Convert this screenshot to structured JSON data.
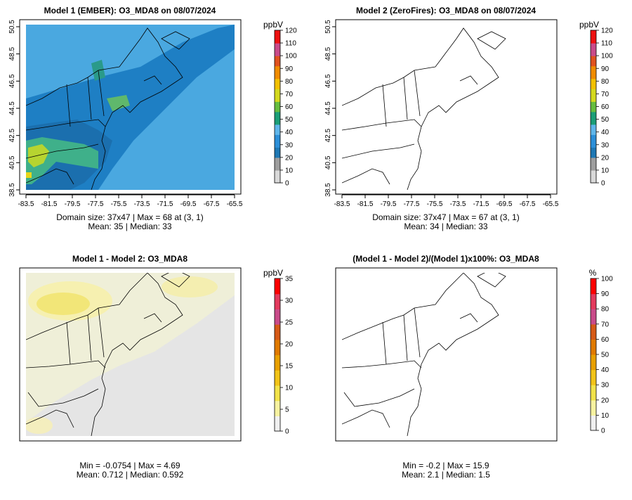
{
  "colors": {
    "ocean_abs": "#4aa8e0",
    "background_diff": "#e5e5e5",
    "frame": "#000000"
  },
  "colorbar_ramp": [
    "#d9d9d9",
    "#9e9e9e",
    "#1f78b4",
    "#2c8fd8",
    "#5fb6ea",
    "#1b9e77",
    "#66bd3f",
    "#d4d91e",
    "#f2c100",
    "#f08c00",
    "#e0521f",
    "#c94b8a",
    "#ee1111"
  ],
  "diff_ramp": [
    "#f0f0f0",
    "#f6f2a0",
    "#f2e34a",
    "#f2c418",
    "#e8a000",
    "#e07a00",
    "#d65a17",
    "#c94b8a",
    "#e33a5d",
    "#ff0000"
  ],
  "chart_data": [
    {
      "type": "heatmap",
      "title": "Model 1 (EMBER): O3_MDA8 on 08/07/2024",
      "domain_size": "37x47",
      "unit": "ppbV",
      "x_ticks": [
        "-83.5",
        "-81.5",
        "-79.5",
        "-77.5",
        "-75.5",
        "-73.5",
        "-71.5",
        "-69.5",
        "-67.5",
        "-65.5"
      ],
      "y_ticks": [
        "38.5",
        "40.5",
        "42.5",
        "44.5",
        "46.5",
        "48.5",
        "50.5"
      ],
      "colorbar_ticks": [
        "0",
        "10",
        "20",
        "30",
        "40",
        "50",
        "60",
        "70",
        "80",
        "90",
        "100",
        "110",
        "120"
      ],
      "colorbar_range": [
        0,
        120
      ],
      "stats_line1": "Domain size: 37x47 | Max = 68 at (3, 1)",
      "stats_line2": "Mean: 35 |  Median: 33",
      "max": 68,
      "mean": 35,
      "median": 33
    },
    {
      "type": "heatmap",
      "title": "Model 2 (ZeroFires): O3_MDA8 on 08/07/2024",
      "domain_size": "37x47",
      "unit": "ppbV",
      "x_ticks": [
        "-83.5",
        "-81.5",
        "-79.5",
        "-77.5",
        "-75.5",
        "-73.5",
        "-71.5",
        "-69.5",
        "-67.5",
        "-65.5"
      ],
      "y_ticks": [
        "38.5",
        "40.5",
        "42.5",
        "44.5",
        "46.5",
        "48.5",
        "50.5"
      ],
      "colorbar_ticks": [
        "0",
        "10",
        "20",
        "30",
        "40",
        "50",
        "60",
        "70",
        "80",
        "90",
        "100",
        "110",
        "120"
      ],
      "colorbar_range": [
        0,
        120
      ],
      "stats_line1": "Domain size: 37x47 | Max = 67 at (3, 1)",
      "stats_line2": "Mean: 34 |  Median: 33",
      "max": 67,
      "mean": 34,
      "median": 33
    },
    {
      "type": "heatmap",
      "title": "Model 1 - Model 2: O3_MDA8",
      "unit": "ppbV",
      "colorbar_ticks": [
        "0",
        "5",
        "10",
        "15",
        "20",
        "25",
        "30",
        "35"
      ],
      "colorbar_range": [
        0,
        35
      ],
      "stats_line1": "Min = -0.0754 | Max = 4.69",
      "stats_line2": "Mean: 0.712 |  Median: 0.592",
      "min": -0.0754,
      "max": 4.69,
      "mean": 0.712,
      "median": 0.592
    },
    {
      "type": "heatmap",
      "title": "(Model 1 - Model 2)/(Model 1)x100%: O3_MDA8",
      "unit": "%",
      "colorbar_ticks": [
        "0",
        "10",
        "20",
        "30",
        "40",
        "50",
        "60",
        "70",
        "80",
        "90",
        "100"
      ],
      "colorbar_range": [
        0,
        100
      ],
      "stats_line1": "Min = -0.2 | Max = 15.9",
      "stats_line2": "Mean: 2.1 |  Median: 1.5",
      "min": -0.2,
      "max": 15.9,
      "mean": 2.1,
      "median": 1.5
    }
  ]
}
